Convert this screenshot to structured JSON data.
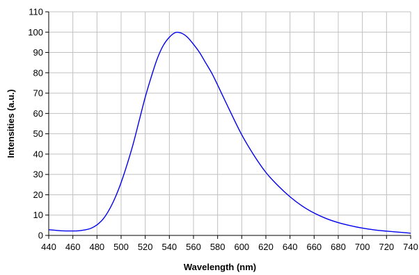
{
  "chart_data": {
    "type": "line",
    "title": "",
    "xlabel": "Wavelength (nm)",
    "ylabel": "Intensities (a.u.)",
    "xlim": [
      440,
      740
    ],
    "ylim": [
      0,
      110
    ],
    "xticks": [
      440,
      460,
      480,
      500,
      520,
      540,
      560,
      580,
      600,
      620,
      640,
      660,
      680,
      700,
      720,
      740
    ],
    "yticks": [
      0,
      10,
      20,
      30,
      40,
      50,
      60,
      70,
      80,
      90,
      100,
      110
    ],
    "grid": true,
    "legend": "none",
    "series": [
      {
        "color": "#0000ee",
        "x": [
          440,
          450,
          460,
          465,
          470,
          475,
          480,
          485,
          490,
          495,
          500,
          505,
          510,
          515,
          520,
          525,
          530,
          535,
          540,
          545,
          550,
          555,
          560,
          565,
          570,
          575,
          580,
          590,
          600,
          610,
          620,
          630,
          640,
          650,
          660,
          670,
          680,
          690,
          700,
          710,
          720,
          730,
          740
        ],
        "y": [
          2.8,
          2.3,
          2.2,
          2.3,
          2.7,
          3.5,
          5.2,
          8.0,
          12.5,
          18.5,
          26.0,
          35.0,
          45.0,
          56.5,
          68.0,
          78.0,
          87.0,
          93.5,
          97.5,
          99.8,
          99.5,
          97.5,
          94.0,
          90.0,
          85.0,
          80.0,
          74.0,
          61.5,
          49.5,
          39.5,
          31.0,
          24.5,
          19.0,
          14.5,
          11.0,
          8.3,
          6.3,
          4.8,
          3.6,
          2.7,
          2.1,
          1.6,
          1.1
        ]
      }
    ]
  }
}
